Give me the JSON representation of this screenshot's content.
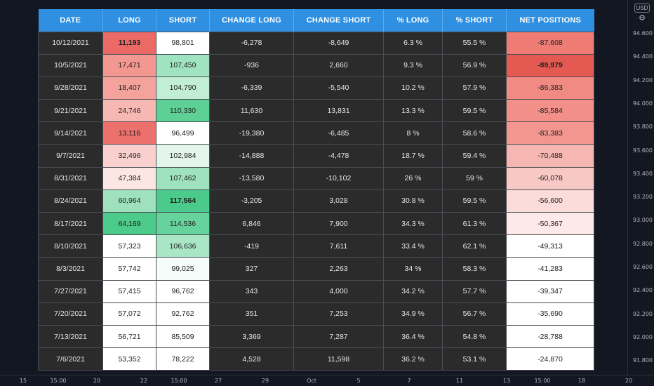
{
  "table": {
    "headers": [
      "DATE",
      "LONG",
      "SHORT",
      "CHANGE LONG",
      "CHANGE SHORT",
      "% LONG",
      "% SHORT",
      "NET POSITIONS"
    ],
    "rows": [
      {
        "date": "10/12/2021",
        "long": "11,193",
        "short": "98,801",
        "change_long": "-6,278",
        "change_short": "-8,649",
        "pct_long": "6.3 %",
        "pct_short": "55.5 %",
        "net": "-87,608"
      },
      {
        "date": "10/5/2021",
        "long": "17,471",
        "short": "107,450",
        "change_long": "-936",
        "change_short": "2,660",
        "pct_long": "9.3 %",
        "pct_short": "56.9 %",
        "net": "-89,979"
      },
      {
        "date": "9/28/2021",
        "long": "18,407",
        "short": "104,790",
        "change_long": "-6,339",
        "change_short": "-5,540",
        "pct_long": "10.2 %",
        "pct_short": "57.9 %",
        "net": "-86,383"
      },
      {
        "date": "9/21/2021",
        "long": "24,746",
        "short": "110,330",
        "change_long": "11,630",
        "change_short": "13,831",
        "pct_long": "13.3 %",
        "pct_short": "59.5 %",
        "net": "-85,584"
      },
      {
        "date": "9/14/2021",
        "long": "13,116",
        "short": "96,499",
        "change_long": "-19,380",
        "change_short": "-6,485",
        "pct_long": "8 %",
        "pct_short": "58.6 %",
        "net": "-83,383"
      },
      {
        "date": "9/7/2021",
        "long": "32,496",
        "short": "102,984",
        "change_long": "-14,888",
        "change_short": "-4,478",
        "pct_long": "18.7 %",
        "pct_short": "59.4 %",
        "net": "-70,488"
      },
      {
        "date": "8/31/2021",
        "long": "47,384",
        "short": "107,462",
        "change_long": "-13,580",
        "change_short": "-10,102",
        "pct_long": "26 %",
        "pct_short": "59 %",
        "net": "-60,078"
      },
      {
        "date": "8/24/2021",
        "long": "60,964",
        "short": "117,564",
        "change_long": "-3,205",
        "change_short": "3,028",
        "pct_long": "30.8 %",
        "pct_short": "59.5 %",
        "net": "-56,600"
      },
      {
        "date": "8/17/2021",
        "long": "64,169",
        "short": "114,536",
        "change_long": "6,846",
        "change_short": "7,900",
        "pct_long": "34.3 %",
        "pct_short": "61.3 %",
        "net": "-50,367"
      },
      {
        "date": "8/10/2021",
        "long": "57,323",
        "short": "106,636",
        "change_long": "-419",
        "change_short": "7,611",
        "pct_long": "33.4 %",
        "pct_short": "62.1 %",
        "net": "-49,313"
      },
      {
        "date": "8/3/2021",
        "long": "57,742",
        "short": "99,025",
        "change_long": "327",
        "change_short": "2,263",
        "pct_long": "34 %",
        "pct_short": "58.3 %",
        "net": "-41,283"
      },
      {
        "date": "7/27/2021",
        "long": "57,415",
        "short": "96,762",
        "change_long": "343",
        "change_short": "4,000",
        "pct_long": "34.2 %",
        "pct_short": "57.7 %",
        "net": "-39,347"
      },
      {
        "date": "7/20/2021",
        "long": "57,072",
        "short": "92,762",
        "change_long": "351",
        "change_short": "7,253",
        "pct_long": "34.9 %",
        "pct_short": "56.7 %",
        "net": "-35,690"
      },
      {
        "date": "7/13/2021",
        "long": "56,721",
        "short": "85,509",
        "change_long": "3,369",
        "change_short": "7,287",
        "pct_long": "36.4 %",
        "pct_short": "54.8 %",
        "net": "-28,788"
      },
      {
        "date": "7/6/2021",
        "long": "53,352",
        "short": "78,222",
        "change_long": "4,528",
        "change_short": "11,598",
        "pct_long": "36.2 %",
        "pct_short": "53.1 %",
        "net": "-24,870"
      }
    ],
    "long_colors": [
      "#eb6a66",
      "#f29891",
      "#f4a39c",
      "#f7b8b3",
      "#ec706b",
      "#f9d0cd",
      "#fce6e4",
      "#9fe0bd",
      "#4dcb8a",
      "#ffffff",
      "#ffffff",
      "#ffffff",
      "#ffffff",
      "#ffffff",
      "#ffffff"
    ],
    "short_colors": [
      "#ffffff",
      "#9fe3c0",
      "#c2eed6",
      "#5dd195",
      "#ffffff",
      "#e3f6ec",
      "#9ee3be",
      "#4acb8b",
      "#66d39c",
      "#a9e6c6",
      "#f6fcf9",
      "#ffffff",
      "#ffffff",
      "#ffffff",
      "#ffffff"
    ],
    "net_colors": [
      "#ef7c74",
      "#e45a52",
      "#f08a83",
      "#f18f88",
      "#f2968f",
      "#f6b7b3",
      "#f8c8c5",
      "#fbdcda",
      "#fde9e8",
      "#ffffff",
      "#ffffff",
      "#ffffff",
      "#ffffff",
      "#ffffff",
      "#ffffff"
    ],
    "bold_long_row": 0,
    "bold_short_row": 7,
    "bold_net_row": 1
  },
  "price_axis": {
    "currency_button": "USD",
    "labels": [
      "94.600",
      "94.400",
      "94.200",
      "94.000",
      "93.800",
      "93.600",
      "93.400",
      "93.200",
      "93.000",
      "92.800",
      "92.600",
      "92.400",
      "92.200",
      "92.000",
      "91.800"
    ]
  },
  "time_axis": {
    "labels": [
      "15",
      "15:00",
      "20",
      "22",
      "15:00",
      "27",
      "29",
      "Oct",
      "5",
      "7",
      "11",
      "13",
      "15:00",
      "18",
      "20"
    ]
  }
}
